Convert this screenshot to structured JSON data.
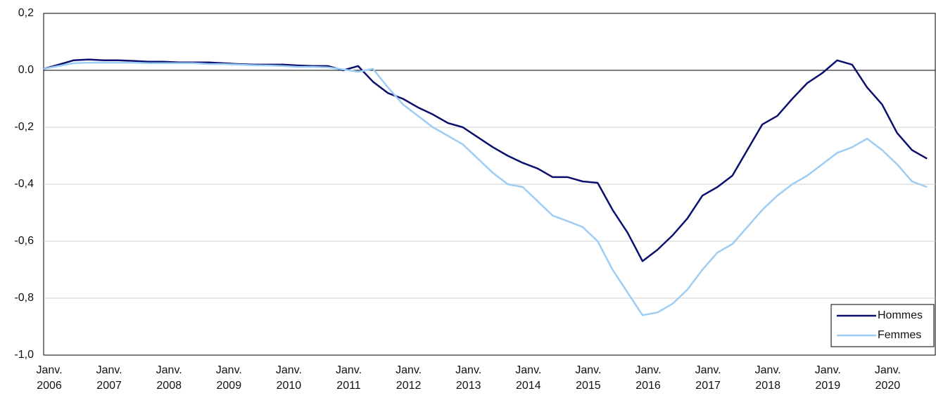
{
  "chart_data": {
    "type": "line",
    "categories": [
      "Janv. 2006",
      null,
      null,
      null,
      "Janv. 2007",
      null,
      null,
      null,
      "Janv. 2008",
      null,
      null,
      null,
      "Janv. 2009",
      null,
      null,
      null,
      "Janv. 2010",
      null,
      null,
      null,
      "Janv. 2011",
      null,
      null,
      null,
      "Janv. 2012",
      null,
      null,
      null,
      "Janv. 2013",
      null,
      null,
      null,
      "Janv. 2014",
      null,
      null,
      null,
      "Janv. 2015",
      null,
      null,
      null,
      "Janv. 2016",
      null,
      null,
      null,
      "Janv. 2017",
      null,
      null,
      null,
      "Janv. 2018",
      null,
      null,
      null,
      "Janv. 2019",
      null,
      null,
      null,
      "Janv. 2020",
      null,
      null,
      null
    ],
    "series": [
      {
        "name": "Hommes",
        "color": "#0b0f6e",
        "values": [
          0.005,
          0.02,
          0.035,
          0.038,
          0.035,
          0.035,
          0.033,
          0.03,
          0.03,
          0.028,
          0.028,
          0.028,
          0.025,
          0.022,
          0.02,
          0.02,
          0.02,
          0.017,
          0.015,
          0.015,
          0.0,
          0.015,
          -0.04,
          -0.08,
          -0.1,
          -0.13,
          -0.155,
          -0.185,
          -0.2,
          -0.235,
          -0.27,
          -0.3,
          -0.325,
          -0.345,
          -0.375,
          -0.375,
          -0.39,
          -0.395,
          -0.49,
          -0.57,
          -0.67,
          -0.63,
          -0.58,
          -0.52,
          -0.44,
          -0.41,
          -0.37,
          -0.28,
          -0.19,
          -0.16,
          -0.1,
          -0.045,
          -0.01,
          0.035,
          0.02,
          -0.06,
          -0.12,
          -0.22,
          -0.28,
          -0.31
        ]
      },
      {
        "name": "Femmes",
        "color": "#9dcdf5",
        "values": [
          0.005,
          0.015,
          0.025,
          0.027,
          0.027,
          0.027,
          0.027,
          0.025,
          0.025,
          0.025,
          0.025,
          0.022,
          0.022,
          0.02,
          0.018,
          0.017,
          0.015,
          0.012,
          0.012,
          0.01,
          0.003,
          -0.005,
          0.005,
          -0.06,
          -0.12,
          -0.16,
          -0.2,
          -0.23,
          -0.26,
          -0.31,
          -0.36,
          -0.4,
          -0.41,
          -0.46,
          -0.51,
          -0.53,
          -0.55,
          -0.6,
          -0.7,
          -0.78,
          -0.86,
          -0.85,
          -0.82,
          -0.77,
          -0.7,
          -0.64,
          -0.61,
          -0.55,
          -0.49,
          -0.44,
          -0.4,
          -0.37,
          -0.33,
          -0.29,
          -0.27,
          -0.24,
          -0.28,
          -0.33,
          -0.39,
          -0.41
        ]
      }
    ],
    "ylim": [
      -1.0,
      0.2
    ],
    "yticks": [
      {
        "value": -1.0,
        "label": "-1,0"
      },
      {
        "value": -0.8,
        "label": "-0,8"
      },
      {
        "value": -0.6,
        "label": "-0,6"
      },
      {
        "value": -0.4,
        "label": "-0,4"
      },
      {
        "value": -0.2,
        "label": "-0,2"
      },
      {
        "value": 0,
        "label": "0.0"
      },
      {
        "value": 0.2,
        "label": "0,2"
      }
    ],
    "grid": true,
    "legend": "lower right"
  }
}
